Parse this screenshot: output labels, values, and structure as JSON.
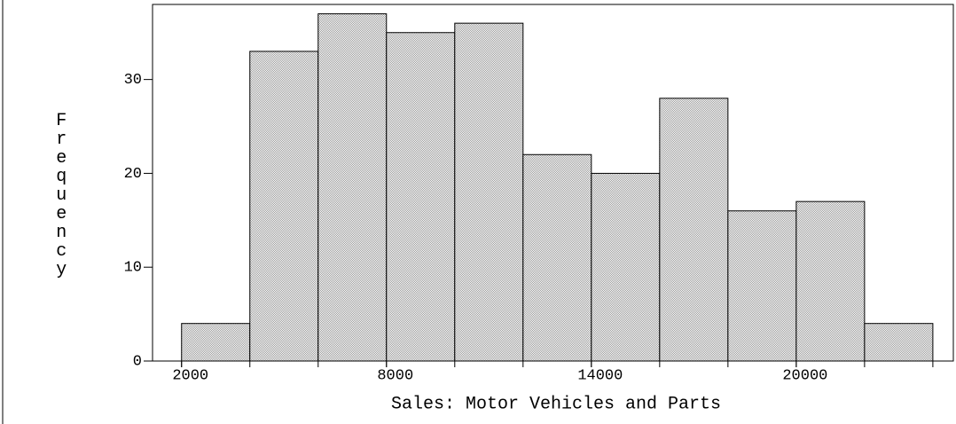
{
  "chart_data": {
    "type": "histogram",
    "xlabel": "Sales: Motor Vehicles and Parts",
    "ylabel": "Frequency",
    "bins": [
      2000,
      4000,
      6000,
      8000,
      10000,
      12000,
      14000,
      16000,
      18000,
      20000,
      22000,
      24000
    ],
    "values": [
      4,
      33,
      37,
      35,
      36,
      22,
      20,
      28,
      16,
      17,
      4
    ],
    "color": "#9a9a9a",
    "xlim": [
      1150,
      24600
    ],
    "xticks": [
      2000,
      8000,
      14000,
      20000
    ],
    "ylim": [
      0,
      38
    ],
    "yticks": [
      0,
      10,
      20,
      30
    ]
  }
}
